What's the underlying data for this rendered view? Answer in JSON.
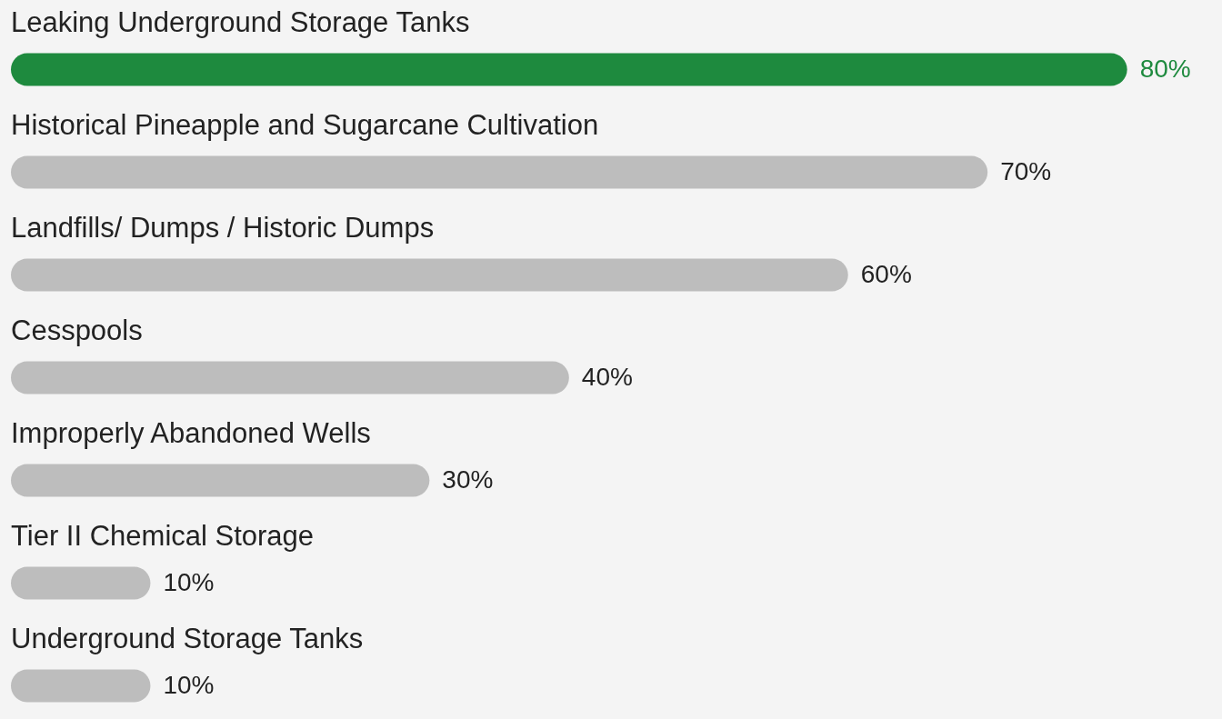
{
  "chart_data": {
    "type": "bar",
    "orientation": "horizontal",
    "categories": [
      "Leaking Underground Storage Tanks",
      "Historical Pineapple and Sugarcane Cultivation",
      "Landfills/ Dumps / Historic Dumps",
      "Cesspools",
      "Improperly Abandoned Wells",
      "Tier II Chemical Storage",
      "Underground Storage Tanks"
    ],
    "values": [
      80,
      70,
      60,
      40,
      30,
      10,
      10
    ],
    "colors": [
      "#1e8a3e",
      "#bdbdbd",
      "#bdbdbd",
      "#bdbdbd",
      "#bdbdbd",
      "#bdbdbd",
      "#bdbdbd"
    ],
    "value_labels": [
      "80%",
      "70%",
      "60%",
      "40%",
      "30%",
      "10%",
      "10%"
    ]
  }
}
